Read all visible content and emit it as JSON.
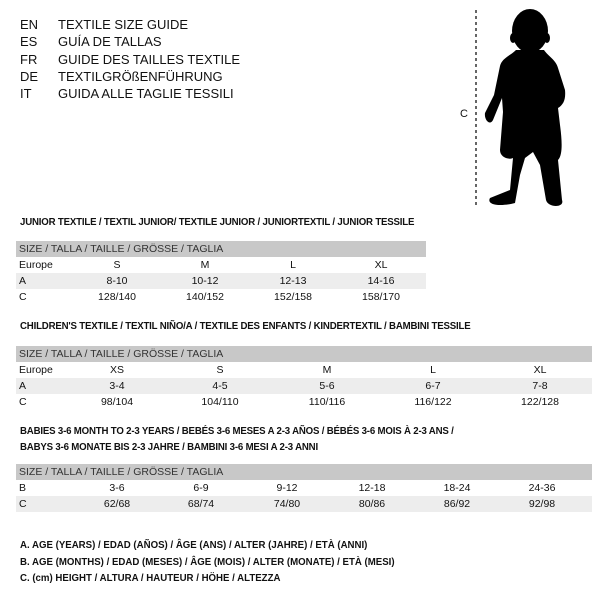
{
  "languages": [
    {
      "code": "EN",
      "text": "TEXTILE SIZE GUIDE"
    },
    {
      "code": "ES",
      "text": "GUÍA DE TALLAS"
    },
    {
      "code": "FR",
      "text": "GUIDE DES TAILLES TEXTILE"
    },
    {
      "code": "DE",
      "text": "TEXTILGRÖßENFÜHRUNG"
    },
    {
      "code": "IT",
      "text": "GUIDA ALLE TAGLIE TESSILI"
    }
  ],
  "figure": {
    "measure_label": "C",
    "icon": "child-silhouette"
  },
  "size_header": "SIZE / TALLA / TAILLE / GRÖSSE / TAGLIA",
  "junior": {
    "title": "JUNIOR TEXTILE / TEXTIL JUNIOR/ TEXTILE JUNIOR / JUNIORTEXTIL / JUNIOR TESSILE",
    "rows": [
      {
        "label": "Europe",
        "cells": [
          "S",
          "M",
          "L",
          "XL"
        ]
      },
      {
        "label": "A",
        "cells": [
          "8-10",
          "10-12",
          "12-13",
          "14-16"
        ]
      },
      {
        "label": "C",
        "cells": [
          "128/140",
          "140/152",
          "152/158",
          "158/170"
        ]
      }
    ]
  },
  "children": {
    "title": "CHILDREN'S TEXTILE / TEXTIL NIÑO/A / TEXTILE DES ENFANTS / KINDERTEXTIL / BAMBINI TESSILE",
    "rows": [
      {
        "label": "Europe",
        "cells": [
          "XS",
          "S",
          "M",
          "L",
          "XL"
        ]
      },
      {
        "label": "A",
        "cells": [
          "3-4",
          "4-5",
          "5-6",
          "6-7",
          "7-8"
        ]
      },
      {
        "label": "C",
        "cells": [
          "98/104",
          "104/110",
          "110/116",
          "116/122",
          "122/128"
        ]
      }
    ]
  },
  "babies": {
    "title_line1": "BABIES 3-6 MONTH TO 2-3 YEARS / BEBÉS 3-6 MESES A 2-3 AÑOS / BÉBÉS 3-6 MOIS À 2-3 ANS /",
    "title_line2": "BABYS 3-6 MONATE BIS 2-3 JAHRE / BAMBINI 3-6 MESI A 2-3 ANNI",
    "rows": [
      {
        "label": "B",
        "cells": [
          "3-6",
          "6-9",
          "9-12",
          "12-18",
          "18-24",
          "24-36"
        ]
      },
      {
        "label": "C",
        "cells": [
          "62/68",
          "68/74",
          "74/80",
          "80/86",
          "86/92",
          "92/98"
        ]
      }
    ]
  },
  "legend": [
    "A. AGE (YEARS) / EDAD (AÑOS) / ÂGE (ANS) / ALTER (JAHRE) / ETÀ (ANNI)",
    "B. AGE (MONTHS) / EDAD (MESES) / ÂGE (MOIS) / ALTER (MONATE) / ETÀ (MESI)",
    "C. (cm) HEIGHT / ALTURA / HAUTEUR / HÖHE / ALTEZZA"
  ]
}
